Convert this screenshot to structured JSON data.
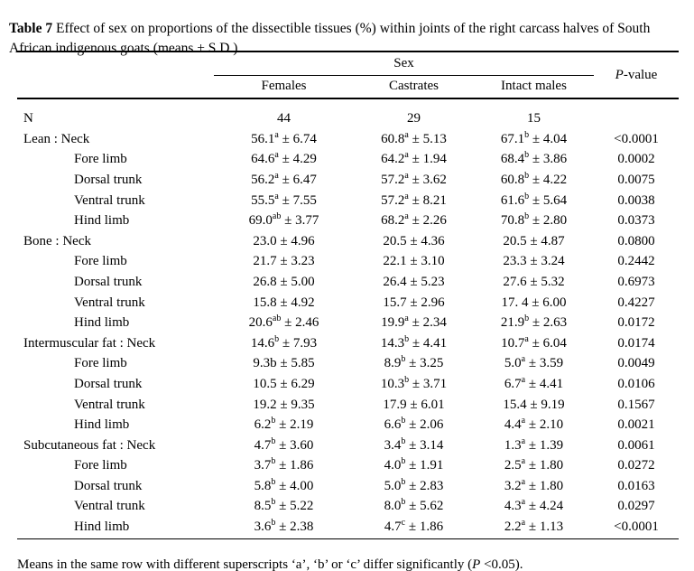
{
  "caption": {
    "segments": [
      {
        "text": "Table 7",
        "bold": true
      },
      {
        "text": " Effect of sex on proportions of the dissectible tissues (%) within joints of the right carcass halves of South African indigenous goats (means ± S.D.)"
      }
    ]
  },
  "table": {
    "spanner": "Sex",
    "pvalue_header": {
      "segments": [
        {
          "text": "P",
          "italic": true
        },
        {
          "text": "-value"
        }
      ]
    },
    "columns": [
      "Females",
      "Castrates",
      "Intact males"
    ],
    "rows": [
      {
        "label": "N",
        "indent": false,
        "values": [
          "44",
          "29",
          "15"
        ],
        "pvalue": ""
      },
      {
        "label": "Lean : Neck",
        "indent": false,
        "values": [
          "56.1^a^ ± 6.74",
          "60.8^a^ ± 5.13",
          "67.1^b^ ± 4.04"
        ],
        "pvalue": "<0.0001"
      },
      {
        "label": "Fore limb",
        "indent": true,
        "values": [
          "64.6^a^ ± 4.29",
          "64.2^a^ ± 1.94",
          "68.4^b^ ± 3.86"
        ],
        "pvalue": "0.0002"
      },
      {
        "label": "Dorsal trunk",
        "indent": true,
        "values": [
          "56.2^a^ ± 6.47",
          "57.2^a^ ± 3.62",
          "60.8^b^ ± 4.22"
        ],
        "pvalue": "0.0075"
      },
      {
        "label": "Ventral trunk",
        "indent": true,
        "values": [
          "55.5^a^ ± 7.55",
          "57.2^a^ ± 8.21",
          "61.6^b^ ± 5.64"
        ],
        "pvalue": "0.0038"
      },
      {
        "label": "Hind limb",
        "indent": true,
        "values": [
          "69.0^ab^ ± 3.77",
          "68.2^a^ ± 2.26",
          "70.8^b^ ± 2.80"
        ],
        "pvalue": "0.0373"
      },
      {
        "label": "Bone : Neck",
        "indent": false,
        "values": [
          "23.0 ± 4.96",
          "20.5 ± 4.36",
          "20.5 ± 4.87"
        ],
        "pvalue": "0.0800"
      },
      {
        "label": "Fore limb",
        "indent": true,
        "values": [
          "21.7 ± 3.23",
          "22.1 ± 3.10",
          "23.3 ± 3.24"
        ],
        "pvalue": "0.2442"
      },
      {
        "label": "Dorsal trunk",
        "indent": true,
        "values": [
          "26.8 ± 5.00",
          "26.4 ± 5.23",
          "27.6 ± 5.32"
        ],
        "pvalue": "0.6973"
      },
      {
        "label": "Ventral trunk",
        "indent": true,
        "values": [
          "15.8 ± 4.92",
          "15.7 ± 2.96",
          "17. 4 ± 6.00"
        ],
        "pvalue": "0.4227"
      },
      {
        "label": "Hind limb",
        "indent": true,
        "values": [
          "20.6^ab^ ± 2.46",
          "19.9^a^ ± 2.34",
          "21.9^b^ ± 2.63"
        ],
        "pvalue": "0.0172"
      },
      {
        "label": "Intermuscular fat : Neck",
        "indent": false,
        "values": [
          "14.6^b^ ± 7.93",
          "14.3^b^ ± 4.41",
          "10.7^a^ ± 6.04"
        ],
        "pvalue": "0.0174"
      },
      {
        "label": "Fore limb",
        "indent": true,
        "values": [
          "9.3b ± 5.85",
          "8.9^b^ ± 3.25",
          "5.0^a^ ± 3.59"
        ],
        "pvalue": "0.0049"
      },
      {
        "label": "Dorsal trunk",
        "indent": true,
        "values": [
          "10.5 ± 6.29",
          "10.3^b^ ± 3.71",
          "6.7^a^ ± 4.41"
        ],
        "pvalue": "0.0106"
      },
      {
        "label": "Ventral trunk",
        "indent": true,
        "values": [
          "19.2 ± 9.35",
          "17.9 ± 6.01",
          "15.4 ± 9.19"
        ],
        "pvalue": "0.1567"
      },
      {
        "label": "Hind limb",
        "indent": true,
        "values": [
          "6.2^b^ ± 2.19",
          "6.6^b^ ± 2.06",
          "4.4^a^ ± 2.10"
        ],
        "pvalue": "0.0021"
      },
      {
        "label": "Subcutaneous fat : Neck",
        "indent": false,
        "values": [
          "4.7^b^ ± 3.60",
          "3.4^b^ ± 3.14",
          "1.3^a^ ± 1.39"
        ],
        "pvalue": "0.0061"
      },
      {
        "label": "Fore limb",
        "indent": true,
        "values": [
          "3.7^b^ ± 1.86",
          "4.0^b^ ± 1.91",
          "2.5^a^ ± 1.80"
        ],
        "pvalue": "0.0272"
      },
      {
        "label": "Dorsal trunk",
        "indent": true,
        "values": [
          "5.8^b^ ± 4.00",
          "5.0^b^ ± 2.83",
          "3.2^a^ ± 1.80"
        ],
        "pvalue": "0.0163"
      },
      {
        "label": "Ventral trunk",
        "indent": true,
        "values": [
          "8.5^b^ ± 5.22",
          "8.0^b^ ± 5.62",
          "4.3^a^ ± 4.24"
        ],
        "pvalue": "0.0297"
      },
      {
        "label": "Hind limb",
        "indent": true,
        "values": [
          "3.6^b^ ± 2.38",
          "4.7^c^ ± 1.86",
          "2.2^a^ ± 1.13"
        ],
        "pvalue": "<0.0001"
      }
    ]
  },
  "footnote": {
    "segments": [
      {
        "text": "Means in the same row with different superscripts ‘a’, ‘b’ or ‘c’ differ significantly ("
      },
      {
        "text": "P",
        "italic": true
      },
      {
        "text": " <0.05)."
      }
    ]
  },
  "colors": {
    "text": "#000000",
    "background": "#ffffff",
    "rule": "#000000"
  }
}
